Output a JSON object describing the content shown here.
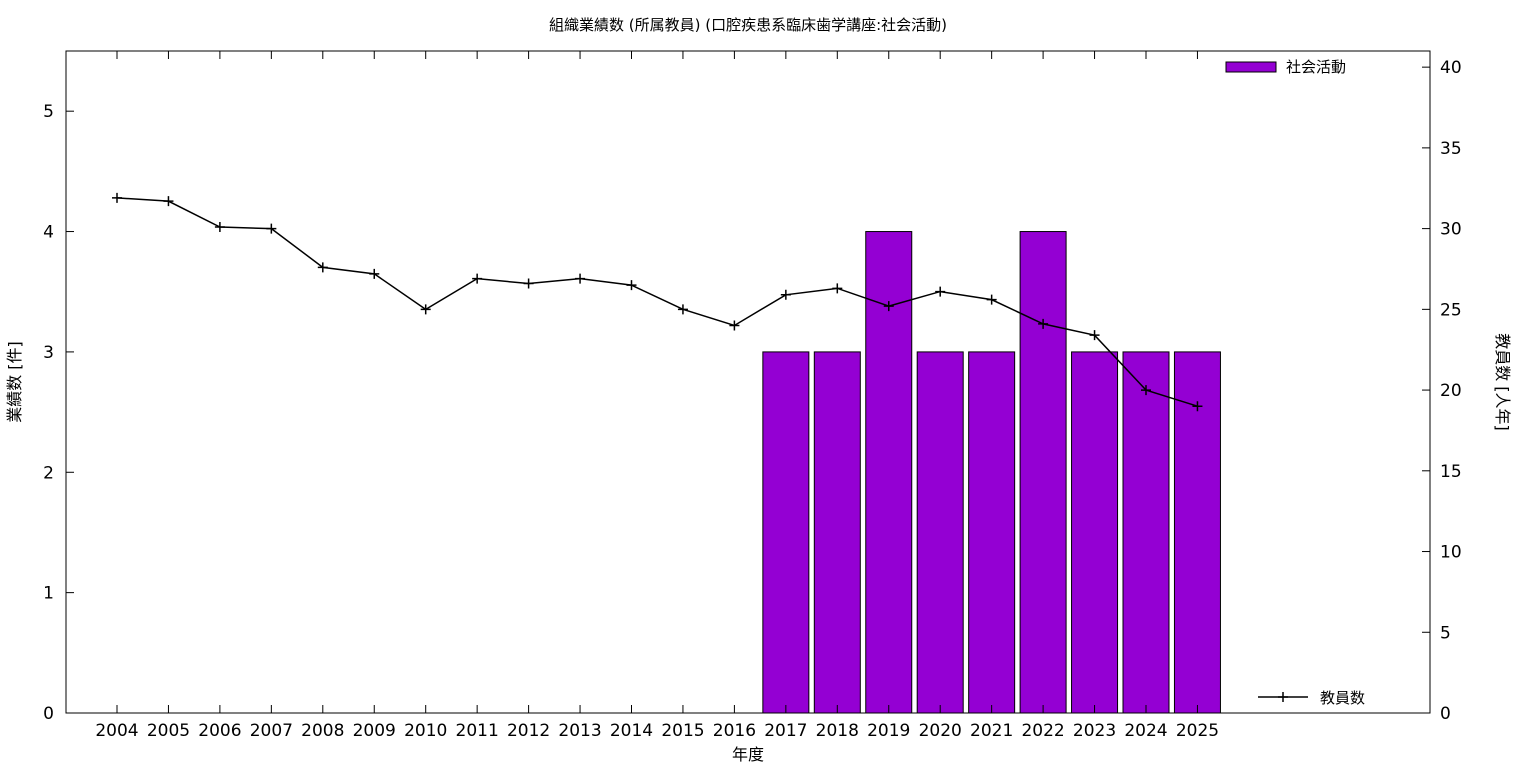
{
  "chart_data": {
    "type": "bar",
    "title": "組織業績数 (所属教員) (口腔疾患系臨床歯学講座:社会活動)",
    "xlabel": "年度",
    "ylabel": "業績数 [件]",
    "y2label": "教員数 [人年]",
    "categories": [
      "2004",
      "2005",
      "2006",
      "2007",
      "2008",
      "2009",
      "2010",
      "2011",
      "2012",
      "2013",
      "2014",
      "2015",
      "2016",
      "2017",
      "2018",
      "2019",
      "2020",
      "2021",
      "2022",
      "2023",
      "2024",
      "2025"
    ],
    "ylim": [
      0,
      5.5
    ],
    "y2lim": [
      0,
      41
    ],
    "yticks": [
      0,
      1,
      2,
      3,
      4,
      5
    ],
    "y2ticks": [
      0,
      5,
      10,
      15,
      20,
      25,
      30,
      35,
      40
    ],
    "legend_placement": "top-right / bottom-right",
    "grid": false,
    "series": [
      {
        "name": "社会活動",
        "type": "bar",
        "axis": "left",
        "color": "#9400d3",
        "values": [
          0,
          0,
          0,
          0,
          0,
          0,
          0,
          0,
          0,
          0,
          0,
          0,
          0,
          3,
          3,
          4,
          3,
          3,
          4,
          3,
          3,
          3
        ]
      },
      {
        "name": "教員数",
        "type": "line",
        "axis": "right",
        "color": "#000000",
        "values": [
          31.9,
          31.7,
          30.1,
          30.0,
          27.6,
          27.2,
          25.0,
          26.9,
          26.6,
          26.9,
          26.5,
          25.0,
          24.0,
          25.9,
          26.3,
          25.2,
          26.1,
          25.6,
          24.1,
          23.4,
          20.0,
          19.0
        ]
      }
    ]
  }
}
